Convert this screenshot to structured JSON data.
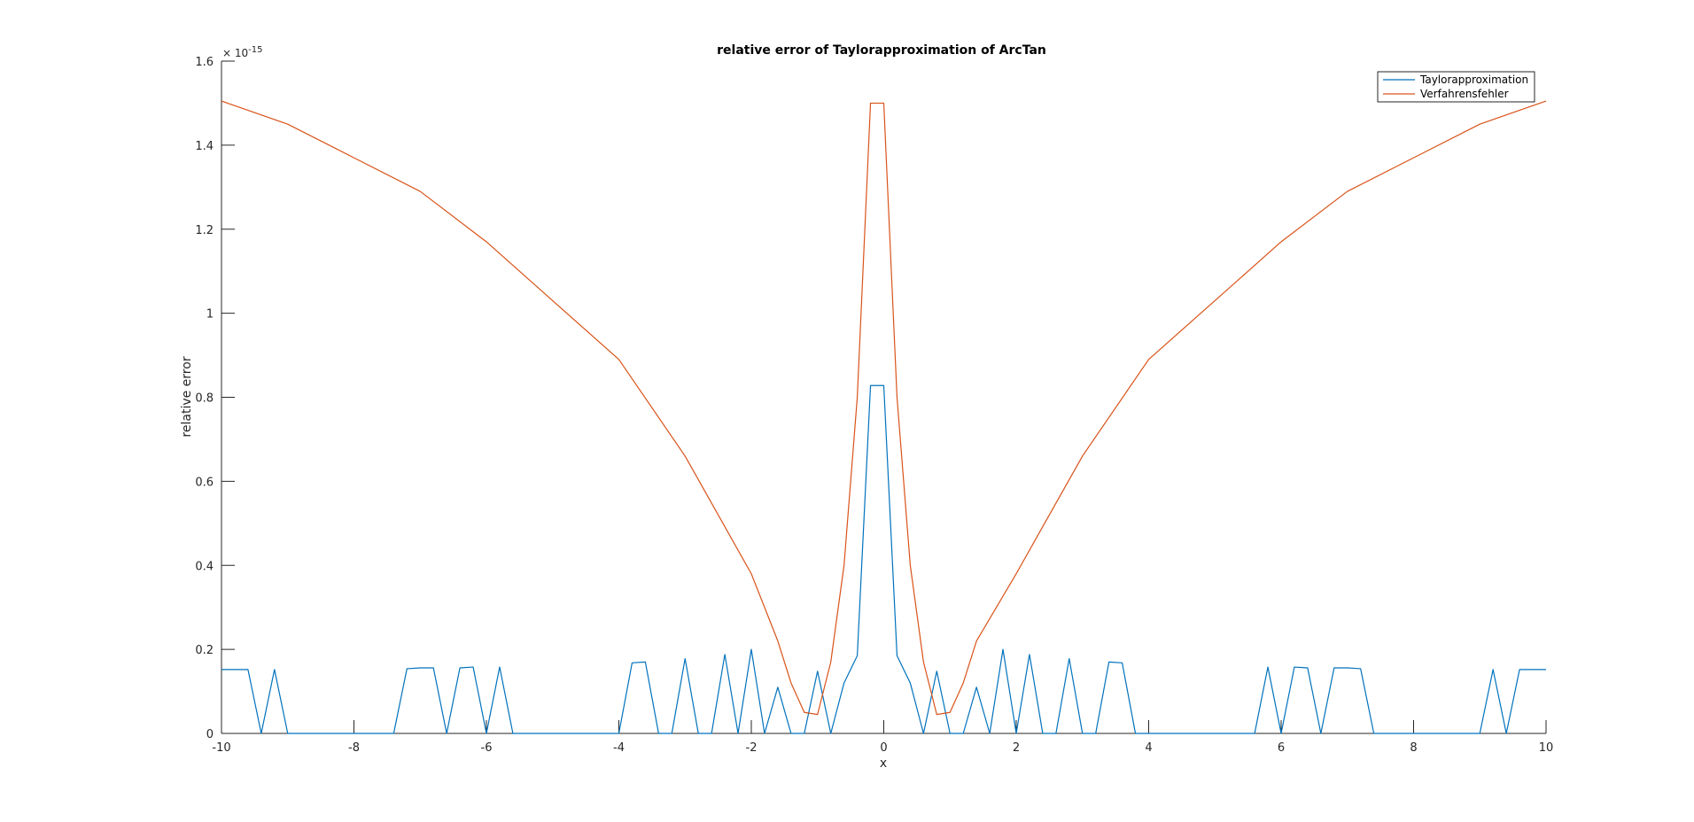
{
  "chart_data": {
    "type": "line",
    "title": "relative error of Taylorapproximation of ArcTan",
    "xlabel": "x",
    "ylabel": "relative error",
    "y_exponent_label": "× 10",
    "y_exponent_power": "-15",
    "xlim": [
      -10,
      10
    ],
    "ylim": [
      0,
      1.6
    ],
    "x_ticks": [
      "-10",
      "-8",
      "-6",
      "-4",
      "-2",
      "0",
      "2",
      "4",
      "6",
      "8",
      "10"
    ],
    "y_ticks": [
      "0",
      "0.2",
      "0.4",
      "0.6",
      "0.8",
      "1",
      "1.2",
      "1.4",
      "1.6"
    ],
    "grid": false,
    "legend_position": "top-right",
    "series": [
      {
        "name": "Taylorapproximation",
        "color": "#0072BD",
        "points": [
          [
            -10,
            0.152
          ],
          [
            -9.6,
            0.152
          ],
          [
            -9.4,
            0
          ],
          [
            -9.2,
            0.152
          ],
          [
            -9.0,
            0
          ],
          [
            -7.4,
            0
          ],
          [
            -7.2,
            0.154
          ],
          [
            -7.0,
            0.156
          ],
          [
            -6.8,
            0.156
          ],
          [
            -6.6,
            0
          ],
          [
            -6.4,
            0.156
          ],
          [
            -6.2,
            0.158
          ],
          [
            -6.0,
            0
          ],
          [
            -5.8,
            0.158
          ],
          [
            -5.6,
            0
          ],
          [
            -4.0,
            0
          ],
          [
            -3.8,
            0.168
          ],
          [
            -3.6,
            0.17
          ],
          [
            -3.4,
            0
          ],
          [
            -3.2,
            0
          ],
          [
            -3.0,
            0.178
          ],
          [
            -2.8,
            0
          ],
          [
            -2.6,
            0
          ],
          [
            -2.4,
            0.188
          ],
          [
            -2.2,
            0
          ],
          [
            -2.0,
            0.2
          ],
          [
            -1.8,
            0
          ],
          [
            -1.6,
            0.11
          ],
          [
            -1.4,
            0
          ],
          [
            -1.2,
            0
          ],
          [
            -1.0,
            0.148
          ],
          [
            -0.8,
            0
          ],
          [
            -0.6,
            0.12
          ],
          [
            -0.4,
            0.185
          ],
          [
            -0.2,
            0.828
          ],
          [
            0,
            0.828
          ],
          [
            0.2,
            0.185
          ],
          [
            0.4,
            0.12
          ],
          [
            0.6,
            0
          ],
          [
            0.8,
            0.148
          ],
          [
            1.0,
            0
          ],
          [
            1.2,
            0
          ],
          [
            1.4,
            0.11
          ],
          [
            1.6,
            0
          ],
          [
            1.8,
            0.2
          ],
          [
            2.0,
            0
          ],
          [
            2.2,
            0.188
          ],
          [
            2.4,
            0
          ],
          [
            2.6,
            0
          ],
          [
            2.8,
            0.178
          ],
          [
            3.0,
            0
          ],
          [
            3.2,
            0
          ],
          [
            3.4,
            0.17
          ],
          [
            3.6,
            0.168
          ],
          [
            3.8,
            0
          ],
          [
            5.6,
            0
          ],
          [
            5.8,
            0.158
          ],
          [
            6.0,
            0
          ],
          [
            6.2,
            0.158
          ],
          [
            6.4,
            0.156
          ],
          [
            6.6,
            0
          ],
          [
            6.8,
            0.156
          ],
          [
            7.0,
            0.156
          ],
          [
            7.2,
            0.154
          ],
          [
            7.4,
            0
          ],
          [
            9.0,
            0
          ],
          [
            9.2,
            0.152
          ],
          [
            9.4,
            0
          ],
          [
            9.6,
            0.152
          ],
          [
            10,
            0.152
          ]
        ]
      },
      {
        "name": "Verfahrensfehler",
        "color": "#D95319",
        "points": [
          [
            -10,
            1.505
          ],
          [
            -9,
            1.45
          ],
          [
            -8,
            1.37
          ],
          [
            -7,
            1.29
          ],
          [
            -6,
            1.17
          ],
          [
            -5,
            1.03
          ],
          [
            -4,
            0.89
          ],
          [
            -3,
            0.66
          ],
          [
            -2.5,
            0.52
          ],
          [
            -2,
            0.38
          ],
          [
            -1.6,
            0.22
          ],
          [
            -1.4,
            0.12
          ],
          [
            -1.2,
            0.05
          ],
          [
            -1.0,
            0.045
          ],
          [
            -0.8,
            0.17
          ],
          [
            -0.6,
            0.4
          ],
          [
            -0.4,
            0.8
          ],
          [
            -0.2,
            1.5
          ],
          [
            0,
            1.5
          ],
          [
            0.2,
            0.8
          ],
          [
            0.4,
            0.4
          ],
          [
            0.6,
            0.17
          ],
          [
            0.8,
            0.045
          ],
          [
            1.0,
            0.05
          ],
          [
            1.2,
            0.12
          ],
          [
            1.4,
            0.22
          ],
          [
            2,
            0.38
          ],
          [
            2.5,
            0.52
          ],
          [
            3,
            0.66
          ],
          [
            4,
            0.89
          ],
          [
            5,
            1.03
          ],
          [
            6,
            1.17
          ],
          [
            7,
            1.29
          ],
          [
            8,
            1.37
          ],
          [
            9,
            1.45
          ],
          [
            10,
            1.505
          ]
        ]
      }
    ]
  }
}
